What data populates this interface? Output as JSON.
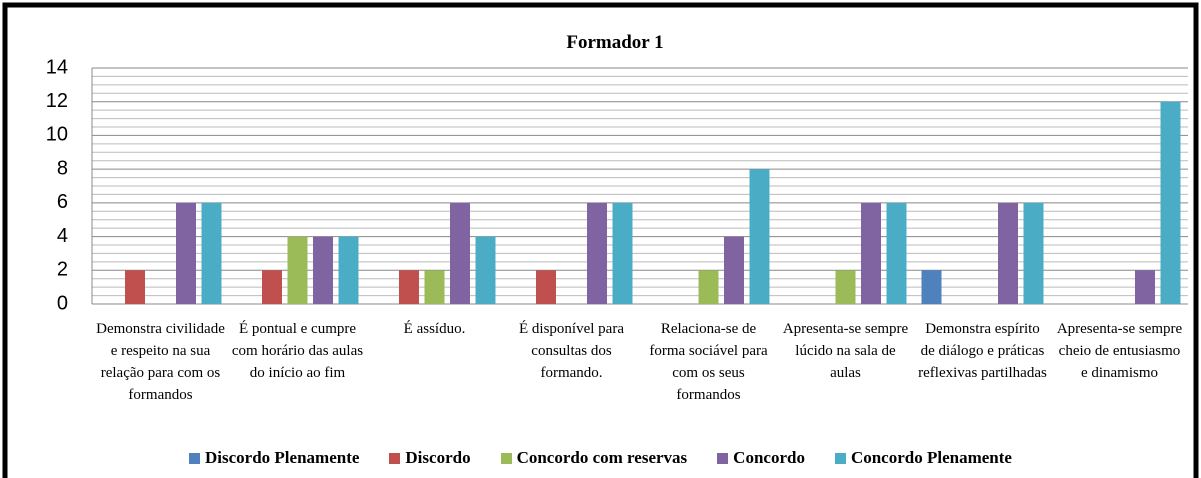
{
  "chart_data": {
    "type": "bar",
    "title": "Formador 1",
    "categories": [
      "Demonstra civilidade e respeito na sua relação para com os formandos",
      "É pontual e cumpre com horário das aulas do início ao fim",
      "É assíduo.",
      "É disponível para consultas dos formando.",
      "Relaciona-se de forma sociável para com os seus formandos",
      "Apresenta-se sempre lúcido na sala de aulas",
      "Demonstra espírito de diálogo e práticas reflexivas partilhadas",
      "Apresenta-se sempre cheio de entusiasmo e dinamismo"
    ],
    "series": [
      {
        "name": "Discordo Plenamente",
        "color": "#4f81bd",
        "values": [
          0,
          0,
          0,
          0,
          0,
          0,
          2,
          0
        ]
      },
      {
        "name": "Discordo",
        "color": "#c0504d",
        "values": [
          2,
          2,
          2,
          2,
          0,
          0,
          0,
          0
        ]
      },
      {
        "name": "Concordo com reservas",
        "color": "#9bbb59",
        "values": [
          0,
          4,
          2,
          0,
          2,
          2,
          0,
          0
        ]
      },
      {
        "name": "Concordo",
        "color": "#8064a2",
        "values": [
          6,
          4,
          6,
          6,
          4,
          6,
          6,
          2
        ]
      },
      {
        "name": "Concordo Plenamente",
        "color": "#4bacc6",
        "values": [
          6,
          4,
          4,
          6,
          8,
          6,
          6,
          12
        ]
      }
    ],
    "ylim": [
      0,
      14
    ],
    "yticks": [
      0,
      2,
      4,
      6,
      8,
      10,
      12,
      14
    ],
    "grid": true,
    "legend": "bottom"
  }
}
